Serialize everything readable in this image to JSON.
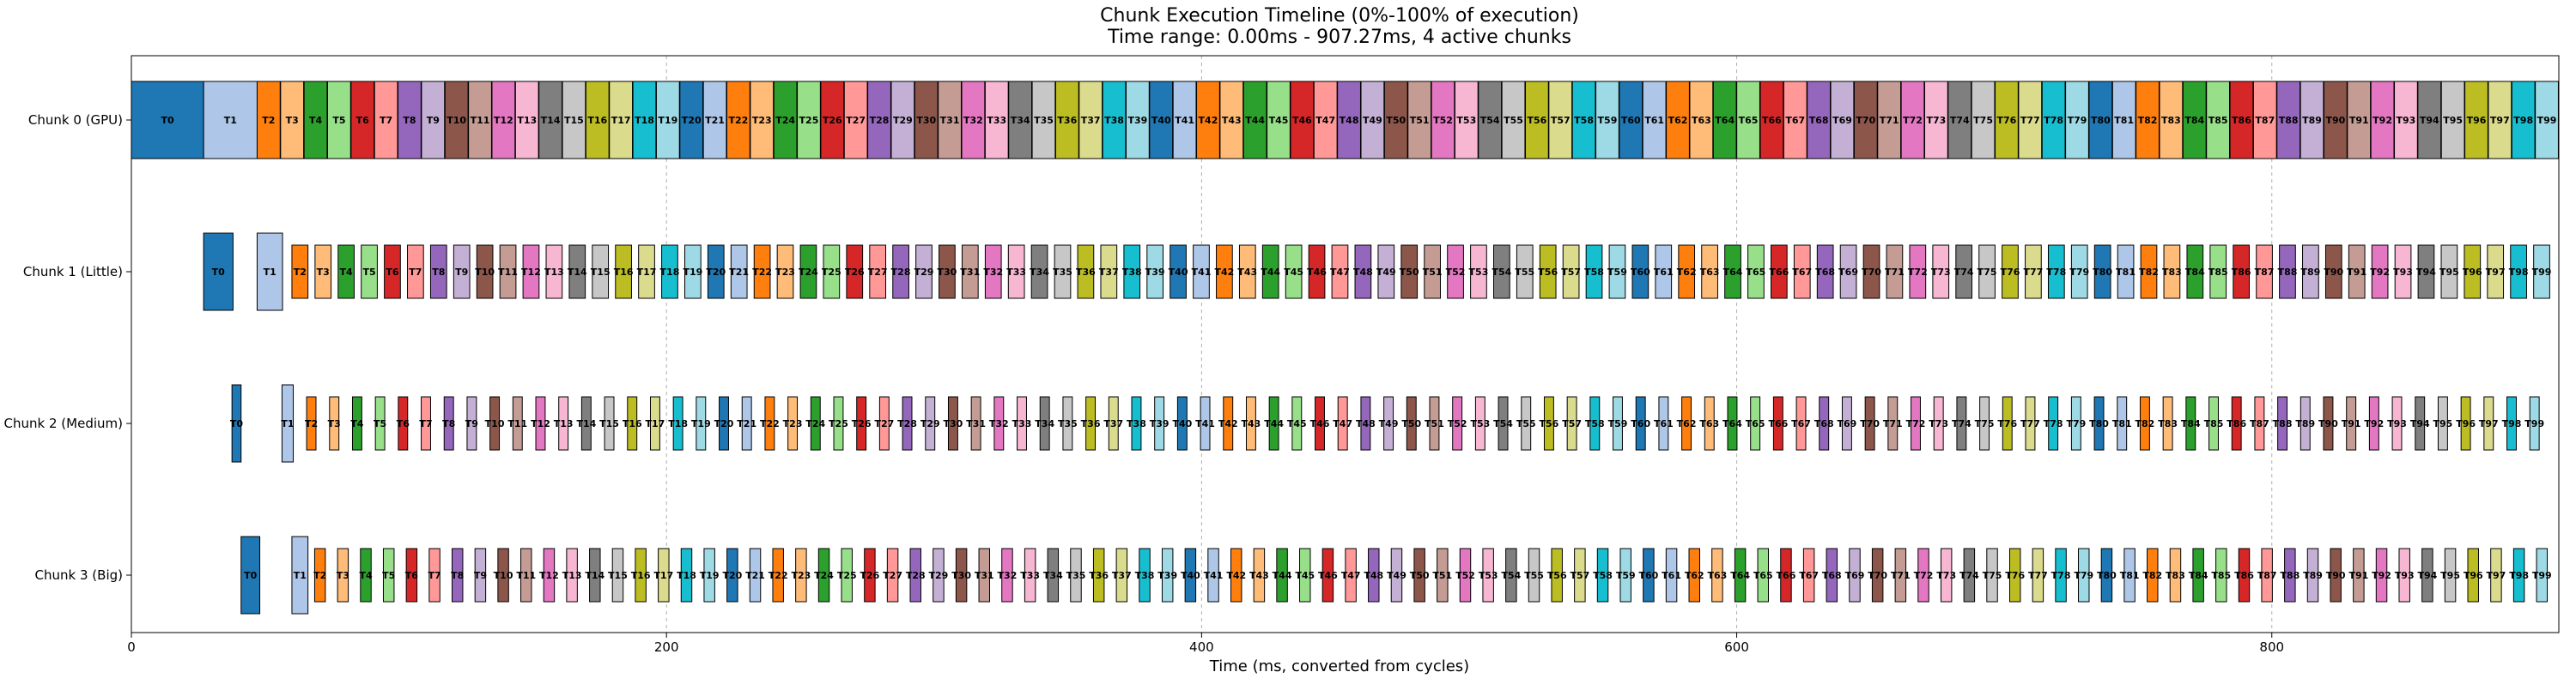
{
  "chart_data": {
    "type": "gantt",
    "title": "Chunk Execution Timeline (0%-100% of execution)",
    "subtitle": "Time range: 0.00ms - 907.27ms, 4 active chunks",
    "xlabel": "Time (ms, converted from cycles)",
    "xlim": [
      0,
      907.27
    ],
    "xticks": [
      0,
      200,
      400,
      600,
      800
    ],
    "grid": "x-dashed",
    "lanes": [
      "Chunk 0 (GPU)",
      "Chunk 1 (Little)",
      "Chunk 2 (Medium)",
      "Chunk 3 (Big)"
    ],
    "task_prefix": "T",
    "task_count": 100,
    "palette": [
      "#1f77b4",
      "#aec7e8",
      "#ff7f0e",
      "#ffbb78",
      "#2ca02c",
      "#98df8a",
      "#d62728",
      "#ff9896",
      "#9467bd",
      "#c5b0d5",
      "#8c564b",
      "#c49c94",
      "#e377c2",
      "#f7b6d2",
      "#7f7f7f",
      "#c7c7c7",
      "#bcbd22",
      "#dbdb8d",
      "#17becf",
      "#9edae5"
    ],
    "series": [
      {
        "name": "Chunk 0 (GPU)",
        "t0": {
          "start": 0,
          "end": 27
        },
        "t1": {
          "start": 27,
          "end": 47
        },
        "tasks": {
          "start": 47,
          "end": 907.27,
          "duration": 8.6,
          "gap": 0
        }
      },
      {
        "name": "Chunk 1 (Little)",
        "t0": {
          "start": 27,
          "end": 38
        },
        "t1": {
          "start": 47,
          "end": 56.5
        },
        "tasks": {
          "start": 60,
          "end": 906.5,
          "duration": 6.0,
          "gap": 2.55
        }
      },
      {
        "name": "Chunk 2 (Medium)",
        "t0": {
          "start": 37.6,
          "end": 41
        },
        "t1": {
          "start": 56.3,
          "end": 60.5
        },
        "tasks": {
          "start": 65.5,
          "end": 905,
          "duration": 3.5,
          "gap": 5.0
        }
      },
      {
        "name": "Chunk 3 (Big)",
        "t0": {
          "start": 41,
          "end": 48
        },
        "t1": {
          "start": 60,
          "end": 66
        },
        "tasks": {
          "start": 68.5,
          "end": 907.5,
          "duration": 4.0,
          "gap": 4.5
        }
      }
    ]
  }
}
